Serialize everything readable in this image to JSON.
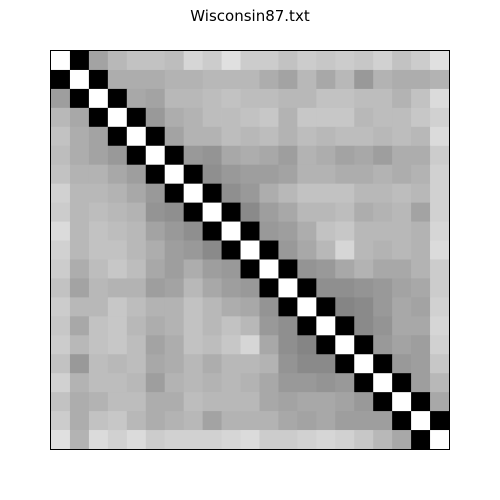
{
  "chart_data": {
    "type": "heatmap",
    "title": "Wisconsin87.txt",
    "xlabel": "",
    "ylabel": "",
    "colormap": "grayscale",
    "axes_ticks": false,
    "grid": false,
    "legend": false,
    "rows": 21,
    "cols": 21,
    "value_range": [
      0,
      1
    ],
    "values": [
      [
        1,
        0,
        0.64,
        0.72,
        0.76,
        0.76,
        0.74,
        0.84,
        0.8,
        0.88,
        0.8,
        0.8,
        0.76,
        0.8,
        0.78,
        0.8,
        0.78,
        0.82,
        0.76,
        0.8,
        0.88
      ],
      [
        0,
        1,
        0,
        0.68,
        0.68,
        0.68,
        0.7,
        0.7,
        0.72,
        0.72,
        0.72,
        0.68,
        0.64,
        0.72,
        0.66,
        0.72,
        0.6,
        0.7,
        0.68,
        0.68,
        0.7
      ],
      [
        0.62,
        0,
        1,
        0,
        0.66,
        0.64,
        0.72,
        0.72,
        0.74,
        0.76,
        0.74,
        0.74,
        0.72,
        0.72,
        0.76,
        0.76,
        0.74,
        0.74,
        0.7,
        0.76,
        0.86
      ],
      [
        0.72,
        0.66,
        0,
        1,
        0,
        0.6,
        0.68,
        0.7,
        0.74,
        0.74,
        0.76,
        0.78,
        0.7,
        0.78,
        0.78,
        0.78,
        0.72,
        0.74,
        0.74,
        0.78,
        0.82
      ],
      [
        0.76,
        0.68,
        0.64,
        0,
        1,
        0,
        0.64,
        0.7,
        0.7,
        0.74,
        0.72,
        0.74,
        0.7,
        0.74,
        0.72,
        0.74,
        0.74,
        0.72,
        0.74,
        0.72,
        0.86
      ],
      [
        0.74,
        0.68,
        0.64,
        0.6,
        0,
        1,
        0,
        0.6,
        0.58,
        0.66,
        0.68,
        0.66,
        0.62,
        0.7,
        0.68,
        0.64,
        0.66,
        0.62,
        0.68,
        0.68,
        0.8
      ],
      [
        0.76,
        0.7,
        0.7,
        0.66,
        0.62,
        0,
        1,
        0,
        0.56,
        0.6,
        0.62,
        0.62,
        0.64,
        0.7,
        0.7,
        0.68,
        0.68,
        0.7,
        0.68,
        0.7,
        0.82
      ],
      [
        0.82,
        0.72,
        0.72,
        0.7,
        0.66,
        0.6,
        0,
        1,
        0,
        0.56,
        0.6,
        0.68,
        0.72,
        0.76,
        0.76,
        0.76,
        0.72,
        0.72,
        0.74,
        0.72,
        0.82
      ],
      [
        0.8,
        0.72,
        0.74,
        0.72,
        0.7,
        0.58,
        0.56,
        0,
        1,
        0,
        0.54,
        0.62,
        0.66,
        0.72,
        0.72,
        0.74,
        0.68,
        0.7,
        0.72,
        0.64,
        0.82
      ],
      [
        0.86,
        0.72,
        0.76,
        0.74,
        0.72,
        0.64,
        0.6,
        0.56,
        0,
        1,
        0,
        0.6,
        0.62,
        0.68,
        0.76,
        0.78,
        0.72,
        0.72,
        0.72,
        0.7,
        0.84
      ],
      [
        0.82,
        0.72,
        0.76,
        0.76,
        0.72,
        0.68,
        0.62,
        0.6,
        0.54,
        0,
        1,
        0,
        0.6,
        0.66,
        0.72,
        0.84,
        0.72,
        0.7,
        0.72,
        0.7,
        0.86
      ],
      [
        0.8,
        0.68,
        0.74,
        0.78,
        0.74,
        0.66,
        0.62,
        0.68,
        0.62,
        0.6,
        0,
        1,
        0,
        0.58,
        0.6,
        0.66,
        0.7,
        0.66,
        0.66,
        0.7,
        0.8
      ],
      [
        0.76,
        0.64,
        0.72,
        0.7,
        0.7,
        0.62,
        0.64,
        0.72,
        0.66,
        0.62,
        0.6,
        0,
        1,
        0,
        0.56,
        0.56,
        0.58,
        0.6,
        0.64,
        0.66,
        0.8
      ],
      [
        0.8,
        0.72,
        0.72,
        0.78,
        0.74,
        0.7,
        0.7,
        0.76,
        0.72,
        0.68,
        0.66,
        0.58,
        0,
        1,
        0,
        0.52,
        0.54,
        0.6,
        0.66,
        0.64,
        0.82
      ],
      [
        0.78,
        0.66,
        0.76,
        0.78,
        0.72,
        0.68,
        0.7,
        0.76,
        0.72,
        0.76,
        0.72,
        0.6,
        0.56,
        0,
        1,
        0,
        0.54,
        0.58,
        0.66,
        0.66,
        0.84
      ],
      [
        0.8,
        0.72,
        0.76,
        0.78,
        0.74,
        0.64,
        0.68,
        0.76,
        0.74,
        0.78,
        0.84,
        0.66,
        0.56,
        0.52,
        0,
        1,
        0,
        0.6,
        0.64,
        0.62,
        0.82
      ],
      [
        0.76,
        0.6,
        0.74,
        0.72,
        0.74,
        0.66,
        0.68,
        0.72,
        0.68,
        0.72,
        0.72,
        0.7,
        0.58,
        0.54,
        0.54,
        0,
        1,
        0,
        0.6,
        0.62,
        0.78
      ],
      [
        0.82,
        0.7,
        0.74,
        0.74,
        0.72,
        0.62,
        0.7,
        0.72,
        0.7,
        0.72,
        0.7,
        0.66,
        0.6,
        0.6,
        0.58,
        0.6,
        0,
        1,
        0,
        0.62,
        0.72
      ],
      [
        0.76,
        0.68,
        0.7,
        0.74,
        0.74,
        0.68,
        0.68,
        0.74,
        0.72,
        0.72,
        0.72,
        0.66,
        0.64,
        0.66,
        0.66,
        0.64,
        0.6,
        0,
        1,
        0,
        0.66
      ],
      [
        0.8,
        0.68,
        0.76,
        0.78,
        0.72,
        0.68,
        0.7,
        0.72,
        0.64,
        0.7,
        0.7,
        0.7,
        0.66,
        0.64,
        0.66,
        0.62,
        0.62,
        0.62,
        0,
        1,
        0
      ],
      [
        0.88,
        0.7,
        0.86,
        0.82,
        0.86,
        0.8,
        0.82,
        0.82,
        0.82,
        0.84,
        0.86,
        0.8,
        0.8,
        0.82,
        0.84,
        0.82,
        0.78,
        0.72,
        0.66,
        0,
        1
      ]
    ]
  }
}
